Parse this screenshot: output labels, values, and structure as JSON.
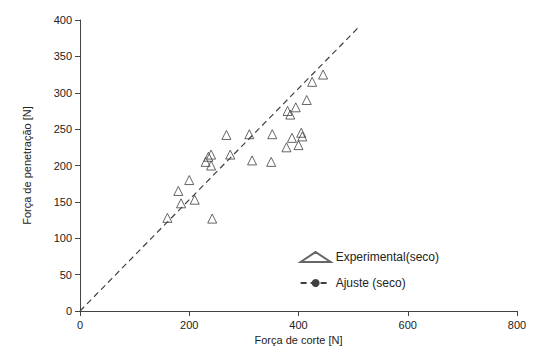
{
  "chart_data": {
    "type": "scatter",
    "x_label": "Força de corte [N]",
    "y_label": "Força de penetração [N]",
    "xlim": [
      0,
      800
    ],
    "xticks": [
      0,
      200,
      400,
      600,
      800
    ],
    "ylim": [
      0,
      400
    ],
    "yticks": [
      0,
      50,
      100,
      150,
      200,
      250,
      300,
      350,
      400
    ],
    "grid": false,
    "legend": "lower right",
    "series": [
      {
        "name": "Experimental(seco)",
        "type": "scatter",
        "marker": "triangle",
        "color": "#404040",
        "x": [
          160,
          180,
          185,
          200,
          210,
          230,
          235,
          240,
          240,
          242,
          268,
          275,
          310,
          315,
          350,
          352,
          378,
          380,
          385,
          388,
          395,
          400,
          405,
          407,
          415,
          425,
          445
        ],
        "values": [
          128,
          165,
          148,
          180,
          153,
          205,
          212,
          215,
          200,
          127,
          242,
          215,
          243,
          207,
          205,
          243,
          225,
          275,
          270,
          238,
          280,
          228,
          245,
          240,
          290,
          315,
          325
        ]
      },
      {
        "name": "Ajuste (seco)",
        "type": "line",
        "line_style": "dashed",
        "color": "#404040",
        "x": [
          0,
          510
        ],
        "values": [
          0,
          390
        ]
      }
    ]
  }
}
